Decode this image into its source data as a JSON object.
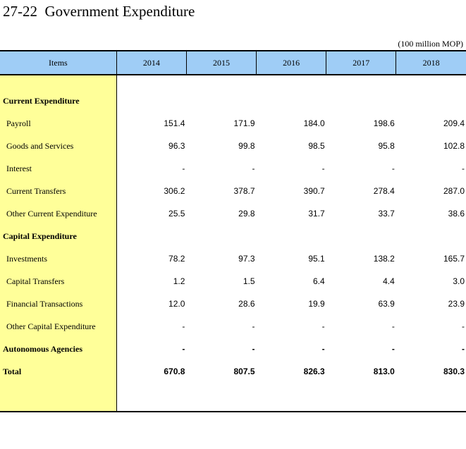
{
  "title": "27-22  Government Expenditure",
  "unit": "(100 million MOP)",
  "header": {
    "items_label": "Items",
    "years": [
      "2014",
      "2015",
      "2016",
      "2017",
      "2018"
    ]
  },
  "rows": [
    {
      "label": "Current Expenditure",
      "values": [
        "",
        "",
        "",
        "",
        ""
      ]
    },
    {
      "label": "Payroll",
      "values": [
        "151.4",
        "171.9",
        "184.0",
        "198.6",
        "209.4"
      ]
    },
    {
      "label": "Goods and Services",
      "values": [
        "96.3",
        "99.8",
        "98.5",
        "95.8",
        "102.8"
      ]
    },
    {
      "label": "Interest",
      "values": [
        "-",
        "-",
        "-",
        "-",
        "-"
      ]
    },
    {
      "label": "Current Transfers",
      "values": [
        "306.2",
        "378.7",
        "390.7",
        "278.4",
        "287.0"
      ]
    },
    {
      "label": "Other Current Expenditure",
      "values": [
        "25.5",
        "29.8",
        "31.7",
        "33.7",
        "38.6"
      ]
    },
    {
      "label": "Capital Expenditure",
      "values": [
        "",
        "",
        "",
        "",
        ""
      ]
    },
    {
      "label": "Investments",
      "values": [
        "78.2",
        "97.3",
        "95.1",
        "138.2",
        "165.7"
      ]
    },
    {
      "label": "Capital Transfers",
      "values": [
        "1.2",
        "1.5",
        "6.4",
        "4.4",
        "3.0"
      ]
    },
    {
      "label": "Financial Transactions",
      "values": [
        "12.0",
        "28.6",
        "19.9",
        "63.9",
        "23.9"
      ]
    },
    {
      "label": "Other Capital Expenditure",
      "values": [
        "-",
        "-",
        "-",
        "-",
        "-"
      ]
    },
    {
      "label": "Autonomous Agencies",
      "values": [
        "-",
        "-",
        "-",
        "-",
        "-"
      ]
    },
    {
      "label": "Total",
      "values": [
        "670.8",
        "807.5",
        "826.3",
        "813.0",
        "830.3"
      ]
    }
  ]
}
